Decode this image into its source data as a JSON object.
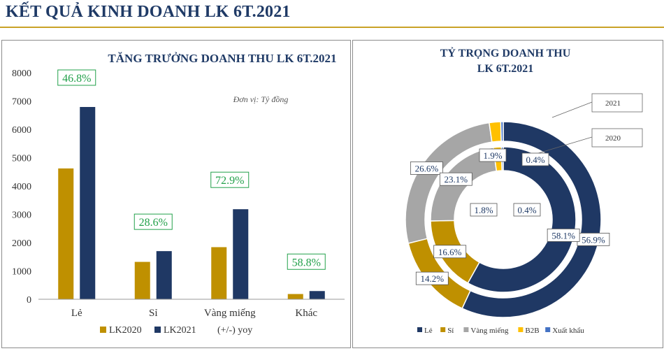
{
  "page_title": "KẾT QUẢ KINH DOANH LK 6T.2021",
  "colors": {
    "lk2020": "#bf9000",
    "lk2021": "#1f3864",
    "yoy_text": "#22a04a",
    "title": "#1f3a66"
  },
  "chart_data": [
    {
      "type": "bar",
      "title": "TĂNG TRƯỞNG DOANH THU LK 6T.2021",
      "unit_note": "Đơn vị: Tỷ đồng",
      "categories": [
        "Lẻ",
        "Sỉ",
        "Vàng miếng",
        "Khác"
      ],
      "series": [
        {
          "name": "LK2020",
          "values": [
            4620,
            1320,
            1840,
            185
          ]
        },
        {
          "name": "LK2021",
          "values": [
            6790,
            1700,
            3180,
            290
          ]
        }
      ],
      "yoy_label": "(+/-) yoy",
      "yoy": [
        "46.8%",
        "28.6%",
        "72.9%",
        "58.8%"
      ],
      "ylim": [
        0,
        8000
      ],
      "yticks": [
        "0",
        "1000",
        "2000",
        "3000",
        "4000",
        "5000",
        "6000",
        "7000",
        "8000"
      ],
      "grid": false,
      "legend": "bottom"
    },
    {
      "type": "pie",
      "subtype": "doughnut",
      "title_lines": [
        "TỶ TRỌNG DOANH THU",
        "LK 6T.2021"
      ],
      "categories": [
        "Lẻ",
        "Sỉ",
        "Vàng miếng",
        "B2B",
        "Xuất khẩu"
      ],
      "category_colors": [
        "#1f3864",
        "#bf9000",
        "#a6a6a6",
        "#ffc000",
        "#4472c4"
      ],
      "rings": [
        {
          "name": "2021",
          "values": [
            56.9,
            14.2,
            26.6,
            1.9,
            0.4
          ],
          "labels": [
            "56.9%",
            "14.2%",
            "26.6%",
            "1.9%",
            "0.4%"
          ]
        },
        {
          "name": "2020",
          "values": [
            58.1,
            16.6,
            23.1,
            1.8,
            0.4
          ],
          "labels": [
            "58.1%",
            "16.6%",
            "23.1%",
            "1.8%",
            "0.4%"
          ]
        }
      ],
      "legend": "bottom"
    }
  ]
}
